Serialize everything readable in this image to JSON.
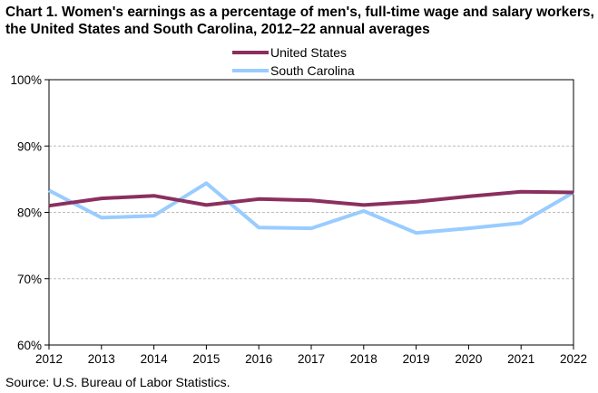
{
  "chart_data": {
    "type": "line",
    "title": "Chart 1. Women's earnings as a percentage of men's, full-time wage and salary workers, the United States and South Carolina, 2012–22 annual averages",
    "x": [
      "2012",
      "2013",
      "2014",
      "2015",
      "2016",
      "2017",
      "2018",
      "2019",
      "2020",
      "2021",
      "2022"
    ],
    "ylim": [
      60,
      100
    ],
    "yticks": [
      "60%",
      "70%",
      "80%",
      "90%",
      "100%"
    ],
    "ytick_values": [
      60,
      70,
      80,
      90,
      100
    ],
    "grid": "horizontal dashed",
    "legend_position": "top-center",
    "series": [
      {
        "name": "United States",
        "color": "#8B2F5E",
        "values": [
          81.0,
          82.1,
          82.5,
          81.1,
          82.0,
          81.8,
          81.1,
          81.6,
          82.4,
          83.1,
          83.0
        ]
      },
      {
        "name": "South Carolina",
        "color": "#99CCFF",
        "values": [
          83.3,
          79.2,
          79.5,
          84.4,
          77.7,
          77.6,
          80.2,
          76.9,
          77.6,
          78.4,
          83.0
        ]
      }
    ]
  },
  "source": "Source:  U.S. Bureau of Labor Statistics."
}
